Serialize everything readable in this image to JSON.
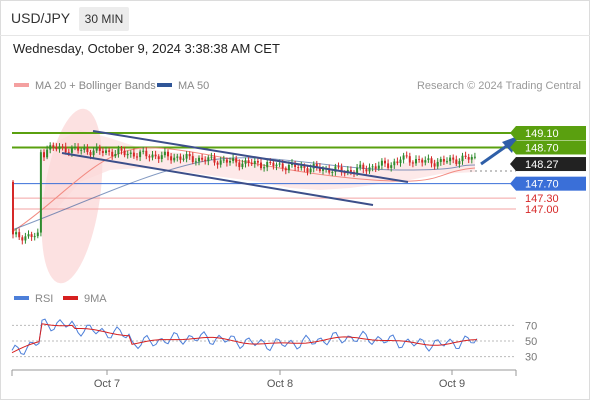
{
  "header": {
    "symbol": "USD/JPY",
    "timeframe": "30 MIN",
    "datetime": "Wednesday, October 9, 2024 3:38:38 AM CET"
  },
  "legend": {
    "ma20": "MA 20 + Bollinger Bands",
    "ma50": "MA 50",
    "copyright": "Research © 2024 Trading Central"
  },
  "rsi_legend": {
    "rsi": "RSI",
    "ma9": "9MA"
  },
  "colors": {
    "green_level": "#5aa00f",
    "blue_level": "#3a6fd8",
    "red_level": "#e06666",
    "candle_up": "#2e8b2e",
    "candle_down": "#d62828",
    "channel": "#3c4f8a",
    "ma20": "#f28b82",
    "ma50": "#2f5597",
    "bollinger_fill": "#fde3e3",
    "rsi_line": "#4d7fd9",
    "rsi_ma": "#d62020",
    "arrow": "#2f5fa8"
  },
  "chart_data": [
    {
      "type": "candlestick",
      "x_ticks": [
        "Oct 7",
        "Oct 8",
        "Oct 9"
      ],
      "current_price": "148.27",
      "levels": [
        {
          "value": "149.10",
          "kind": "resistance"
        },
        {
          "value": "148.70",
          "kind": "resistance"
        },
        {
          "value": "148.27",
          "kind": "current"
        },
        {
          "value": "147.70",
          "kind": "pivot"
        },
        {
          "value": "147.30",
          "kind": "support"
        },
        {
          "value": "147.00",
          "kind": "support"
        }
      ]
    },
    {
      "type": "line",
      "y_ticks": [
        "70",
        "50",
        "30"
      ],
      "series": [
        {
          "name": "RSI"
        },
        {
          "name": "9MA"
        }
      ]
    }
  ]
}
